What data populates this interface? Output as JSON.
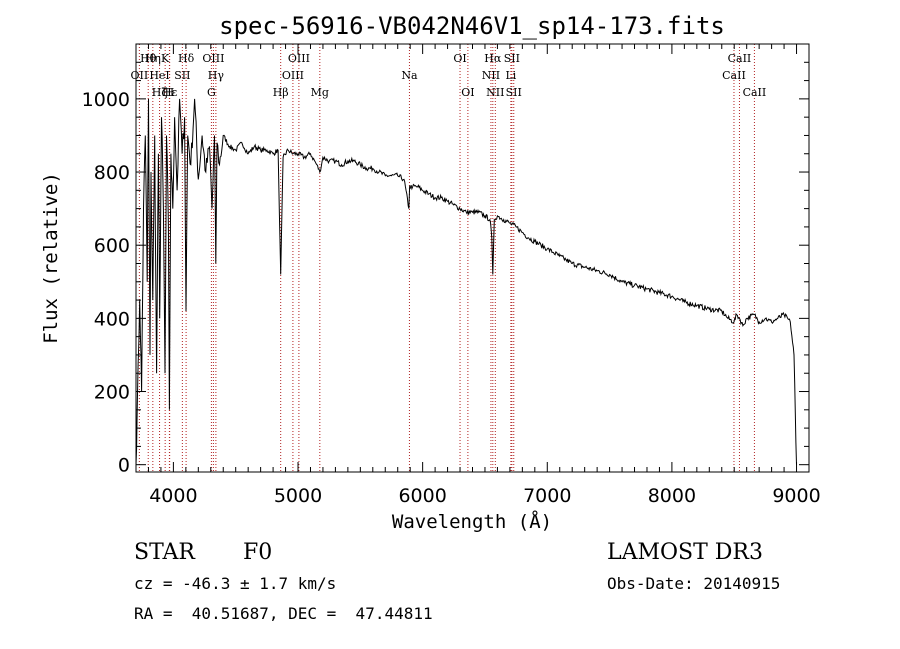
{
  "chart_data": {
    "type": "line",
    "title": "spec-56916-VB042N46V1_sp14-173.fits",
    "xlabel": "Wavelength (Å)",
    "ylabel": "Flux (relative)",
    "xlim": [
      3700,
      9100
    ],
    "ylim": [
      -20,
      1150
    ],
    "x_ticks": [
      4000,
      5000,
      6000,
      7000,
      8000,
      9000
    ],
    "y_ticks": [
      0,
      200,
      400,
      600,
      800,
      1000
    ],
    "grid": false,
    "series": [
      {
        "name": "spectrum",
        "color": "#000000",
        "x": [
          3700,
          3710,
          3730,
          3745,
          3760,
          3775,
          3790,
          3800,
          3812,
          3820,
          3835,
          3850,
          3865,
          3880,
          3890,
          3905,
          3920,
          3933,
          3945,
          3960,
          3968,
          3980,
          3995,
          4010,
          4030,
          4050,
          4070,
          4090,
          4101,
          4115,
          4140,
          4170,
          4200,
          4230,
          4260,
          4290,
          4310,
          4330,
          4340,
          4350,
          4370,
          4400,
          4450,
          4500,
          4550,
          4600,
          4650,
          4700,
          4750,
          4800,
          4840,
          4861,
          4880,
          4920,
          4960,
          5000,
          5050,
          5100,
          5150,
          5175,
          5200,
          5250,
          5300,
          5350,
          5400,
          5450,
          5500,
          5550,
          5600,
          5650,
          5700,
          5750,
          5800,
          5850,
          5890,
          5895,
          5920,
          5960,
          6000,
          6050,
          6100,
          6150,
          6200,
          6250,
          6300,
          6350,
          6400,
          6450,
          6500,
          6540,
          6555,
          6563,
          6575,
          6600,
          6650,
          6700,
          6750,
          6800,
          6850,
          6900,
          6950,
          7000,
          7050,
          7100,
          7150,
          7200,
          7300,
          7400,
          7500,
          7600,
          7700,
          7800,
          7900,
          8000,
          8100,
          8200,
          8300,
          8400,
          8450,
          8498,
          8520,
          8542,
          8570,
          8600,
          8662,
          8700,
          8750,
          8800,
          8850,
          8900,
          8950,
          8980,
          8995,
          9000
        ],
        "y": [
          0,
          150,
          450,
          200,
          700,
          900,
          500,
          1000,
          300,
          800,
          450,
          900,
          250,
          850,
          400,
          950,
          700,
          250,
          900,
          650,
          150,
          850,
          700,
          950,
          750,
          1000,
          850,
          950,
          420,
          900,
          820,
          1000,
          780,
          900,
          800,
          870,
          700,
          900,
          550,
          880,
          820,
          900,
          870,
          860,
          880,
          850,
          870,
          860,
          860,
          850,
          860,
          520,
          840,
          860,
          850,
          850,
          840,
          850,
          820,
          800,
          840,
          830,
          830,
          820,
          830,
          830,
          820,
          810,
          810,
          800,
          790,
          790,
          790,
          780,
          700,
          760,
          760,
          760,
          750,
          740,
          730,
          730,
          720,
          710,
          700,
          690,
          690,
          690,
          680,
          670,
          620,
          520,
          670,
          680,
          670,
          660,
          650,
          635,
          620,
          610,
          600,
          590,
          580,
          570,
          560,
          550,
          540,
          530,
          520,
          500,
          490,
          480,
          470,
          460,
          445,
          435,
          425,
          420,
          400,
          390,
          410,
          400,
          380,
          400,
          410,
          390,
          400,
          390,
          400,
          410,
          390,
          300,
          60,
          0
        ]
      }
    ],
    "line_labels": [
      {
        "label": "Hθ",
        "wavelength": 3798,
        "row": 1
      },
      {
        "label": "OII",
        "wavelength": 3727,
        "row": 2
      },
      {
        "label": "Hη",
        "wavelength": 3835,
        "row": 1
      },
      {
        "label": "HeI",
        "wavelength": 3889,
        "row": 2
      },
      {
        "label": "Hζ",
        "wavelength": 3889,
        "row": 3
      },
      {
        "label": "K",
        "wavelength": 3934,
        "row": 1
      },
      {
        "label": "H",
        "wavelength": 3968,
        "row": 3
      },
      {
        "label": "Hε",
        "wavelength": 3970,
        "row": 3
      },
      {
        "label": "SII",
        "wavelength": 4072,
        "row": 2
      },
      {
        "label": "Hδ",
        "wavelength": 4102,
        "row": 1
      },
      {
        "label": "G",
        "wavelength": 4305,
        "row": 3
      },
      {
        "label": "OIII",
        "wavelength": 4321,
        "row": 1
      },
      {
        "label": "Hγ",
        "wavelength": 4341,
        "row": 2
      },
      {
        "label": "Hβ",
        "wavelength": 4861,
        "row": 3
      },
      {
        "label": "OIII",
        "wavelength": 4959,
        "row": 2
      },
      {
        "label": "OIII",
        "wavelength": 5007,
        "row": 1
      },
      {
        "label": "Mg",
        "wavelength": 5175,
        "row": 3
      },
      {
        "label": "Na",
        "wavelength": 5894,
        "row": 2
      },
      {
        "label": "OI",
        "wavelength": 6300,
        "row": 1
      },
      {
        "label": "OI",
        "wavelength": 6363,
        "row": 3
      },
      {
        "label": "NII",
        "wavelength": 6548,
        "row": 2
      },
      {
        "label": "Hα",
        "wavelength": 6563,
        "row": 1
      },
      {
        "label": "NII",
        "wavelength": 6583,
        "row": 3
      },
      {
        "label": "SII",
        "wavelength": 6716,
        "row": 1
      },
      {
        "label": "Li",
        "wavelength": 6708,
        "row": 2
      },
      {
        "label": "SII",
        "wavelength": 6731,
        "row": 3
      },
      {
        "label": "CaII",
        "wavelength": 8498,
        "row": 2
      },
      {
        "label": "CaII",
        "wavelength": 8542,
        "row": 1
      },
      {
        "label": "CaII",
        "wavelength": 8662,
        "row": 3
      }
    ]
  },
  "info": {
    "class_label": "STAR",
    "subclass": "F0",
    "survey": "LAMOST DR3",
    "cz_text": "cz = -46.3 ± 1.7 km/s",
    "obs_date": "Obs-Date: 20140915",
    "coords": "RA =  40.51687, DEC =  47.44811"
  },
  "colors": {
    "axis": "#000000",
    "line_marker": "#b22222"
  }
}
